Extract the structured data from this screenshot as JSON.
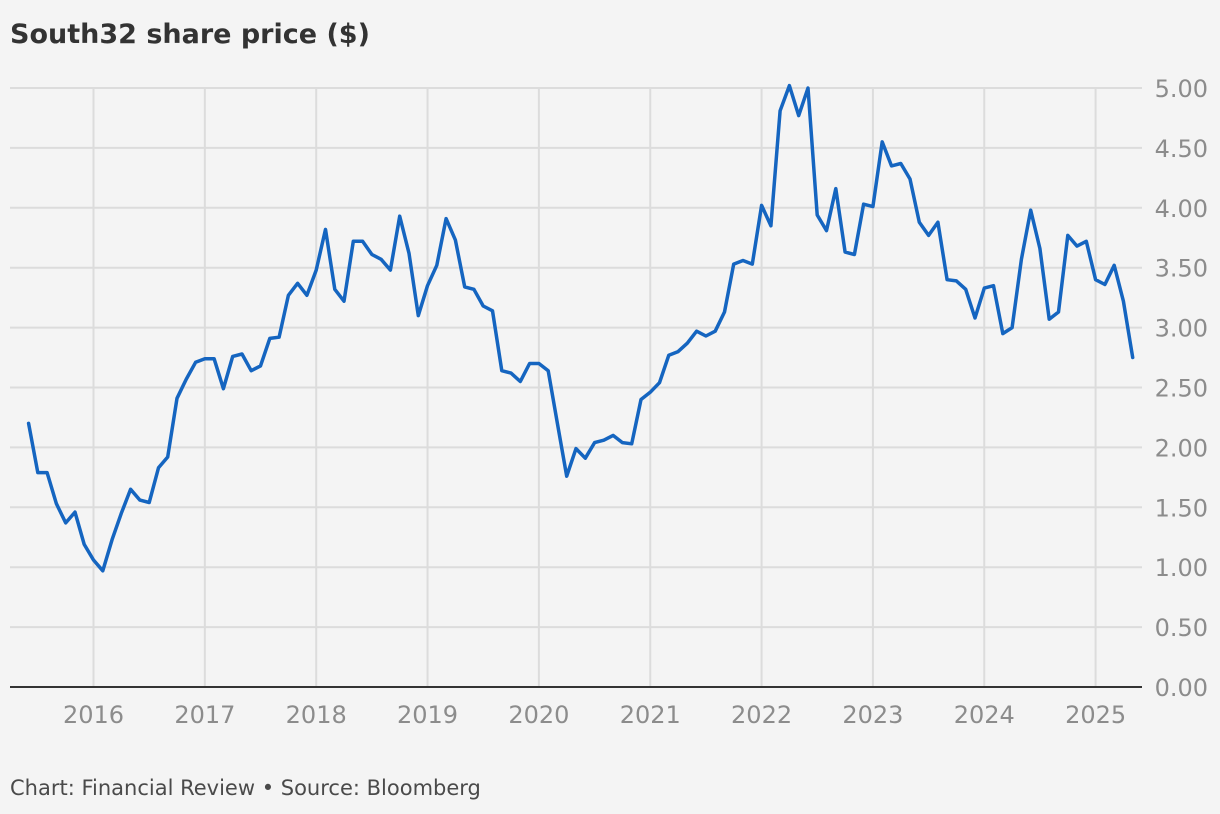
{
  "chart_data": {
    "type": "line",
    "title": "South32 share price ($)",
    "credit": "Chart: Financial Review • Source: Bloomberg",
    "xlabel": "",
    "ylabel": "",
    "ylim": [
      0,
      5
    ],
    "yticks": [
      "0.00",
      "0.50",
      "1.00",
      "1.50",
      "2.00",
      "2.50",
      "3.00",
      "3.50",
      "4.00",
      "4.50",
      "5.00"
    ],
    "xticks": [
      "2016",
      "2017",
      "2018",
      "2019",
      "2020",
      "2021",
      "2022",
      "2023",
      "2024",
      "2025"
    ],
    "xlim": [
      "2015-04",
      "2025-06"
    ],
    "grid": true,
    "legend": "none",
    "colors": {
      "line": "#1565c0",
      "grid": "#dcdcdc",
      "axis": "#333333"
    },
    "series": [
      {
        "x": [
          "2015-06",
          "2015-07",
          "2015-08",
          "2015-09",
          "2015-10",
          "2015-11",
          "2015-12",
          "2016-01",
          "2016-02",
          "2016-03",
          "2016-04",
          "2016-05",
          "2016-06",
          "2016-07",
          "2016-08",
          "2016-09",
          "2016-10",
          "2016-11",
          "2016-12",
          "2017-01",
          "2017-02",
          "2017-03",
          "2017-04",
          "2017-05",
          "2017-06",
          "2017-07",
          "2017-08",
          "2017-09",
          "2017-10",
          "2017-11",
          "2017-12",
          "2018-01",
          "2018-02",
          "2018-03",
          "2018-04",
          "2018-05",
          "2018-06",
          "2018-07",
          "2018-08",
          "2018-09",
          "2018-10",
          "2018-11",
          "2018-12",
          "2019-01",
          "2019-02",
          "2019-03",
          "2019-04",
          "2019-05",
          "2019-06",
          "2019-07",
          "2019-08",
          "2019-09",
          "2019-10",
          "2019-11",
          "2019-12",
          "2020-01",
          "2020-02",
          "2020-03",
          "2020-04",
          "2020-05",
          "2020-06",
          "2020-07",
          "2020-08",
          "2020-09",
          "2020-10",
          "2020-11",
          "2020-12",
          "2021-01",
          "2021-02",
          "2021-03",
          "2021-04",
          "2021-05",
          "2021-06",
          "2021-07",
          "2021-08",
          "2021-09",
          "2021-10",
          "2021-11",
          "2021-12",
          "2022-01",
          "2022-02",
          "2022-03",
          "2022-04",
          "2022-05",
          "2022-06",
          "2022-07",
          "2022-08",
          "2022-09",
          "2022-10",
          "2022-11",
          "2022-12",
          "2023-01",
          "2023-02",
          "2023-03",
          "2023-04",
          "2023-05",
          "2023-06",
          "2023-07",
          "2023-08",
          "2023-09",
          "2023-10",
          "2023-11",
          "2023-12",
          "2024-01",
          "2024-02",
          "2024-03",
          "2024-04",
          "2024-05",
          "2024-06",
          "2024-07",
          "2024-08",
          "2024-09",
          "2024-10",
          "2024-11",
          "2024-12",
          "2025-01",
          "2025-02",
          "2025-03",
          "2025-04",
          "2025-05"
        ],
        "values": [
          2.2,
          1.79,
          1.79,
          1.53,
          1.37,
          1.46,
          1.19,
          1.06,
          0.97,
          1.23,
          1.45,
          1.65,
          1.56,
          1.54,
          1.83,
          1.92,
          2.41,
          2.57,
          2.71,
          2.74,
          2.74,
          2.49,
          2.76,
          2.78,
          2.64,
          2.68,
          2.91,
          2.92,
          3.27,
          3.37,
          3.27,
          3.48,
          3.82,
          3.32,
          3.22,
          3.72,
          3.72,
          3.61,
          3.57,
          3.48,
          3.93,
          3.62,
          3.1,
          3.35,
          3.52,
          3.91,
          3.73,
          3.34,
          3.32,
          3.18,
          3.14,
          2.64,
          2.62,
          2.55,
          2.7,
          2.7,
          2.64,
          2.2,
          1.76,
          1.99,
          1.91,
          2.04,
          2.06,
          2.1,
          2.04,
          2.03,
          2.4,
          2.46,
          2.54,
          2.77,
          2.8,
          2.87,
          2.97,
          2.93,
          2.97,
          3.13,
          3.53,
          3.56,
          3.53,
          4.02,
          3.85,
          4.81,
          5.02,
          4.77,
          5.0,
          3.94,
          3.81,
          4.16,
          3.63,
          3.61,
          4.03,
          4.01,
          4.55,
          4.35,
          4.37,
          4.24,
          3.88,
          3.77,
          3.88,
          3.4,
          3.39,
          3.32,
          3.08,
          3.33,
          3.35,
          2.95,
          3.0,
          3.57,
          3.98,
          3.66,
          3.07,
          3.13,
          3.77,
          3.68,
          3.72,
          3.4,
          3.36,
          3.52,
          3.22,
          2.75
        ]
      }
    ]
  }
}
